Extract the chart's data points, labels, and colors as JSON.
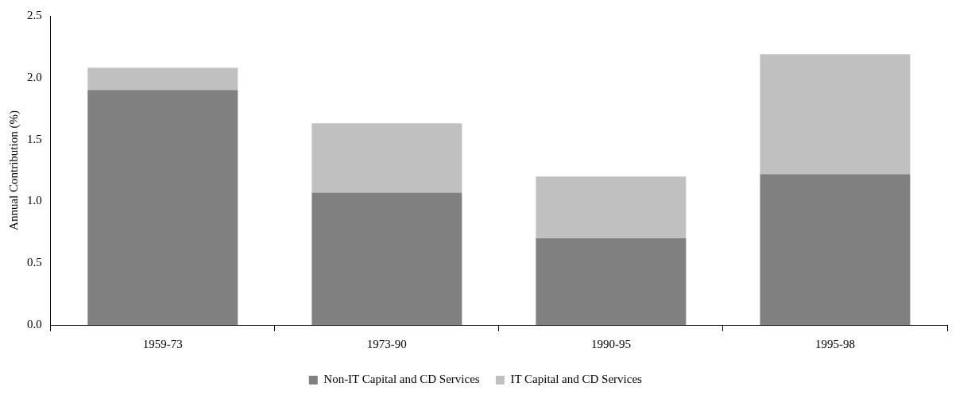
{
  "chart_data": {
    "type": "bar",
    "stacked": true,
    "ylabel": "Annual Contribution (%)",
    "categories": [
      "1959-73",
      "1973-90",
      "1990-95",
      "1995-98"
    ],
    "series": [
      {
        "name": "Non-IT Capital and CD Services",
        "color": "#808080",
        "values": [
          1.9,
          1.07,
          0.7,
          1.22
        ]
      },
      {
        "name": "IT Capital and CD Services",
        "color": "#c0c0c0",
        "values": [
          0.18,
          0.56,
          0.5,
          0.97
        ]
      }
    ],
    "ylim": [
      0,
      2.5
    ],
    "yticks": [
      {
        "value": 0,
        "label": "0.0"
      },
      {
        "value": 0.5,
        "label": "0.5"
      },
      {
        "value": 1,
        "label": "1.0"
      },
      {
        "value": 1.5,
        "label": "1.5"
      },
      {
        "value": 2,
        "label": "2.0"
      },
      {
        "value": 2.5,
        "label": "2.5"
      }
    ],
    "grid": false,
    "legend": "bottom"
  }
}
